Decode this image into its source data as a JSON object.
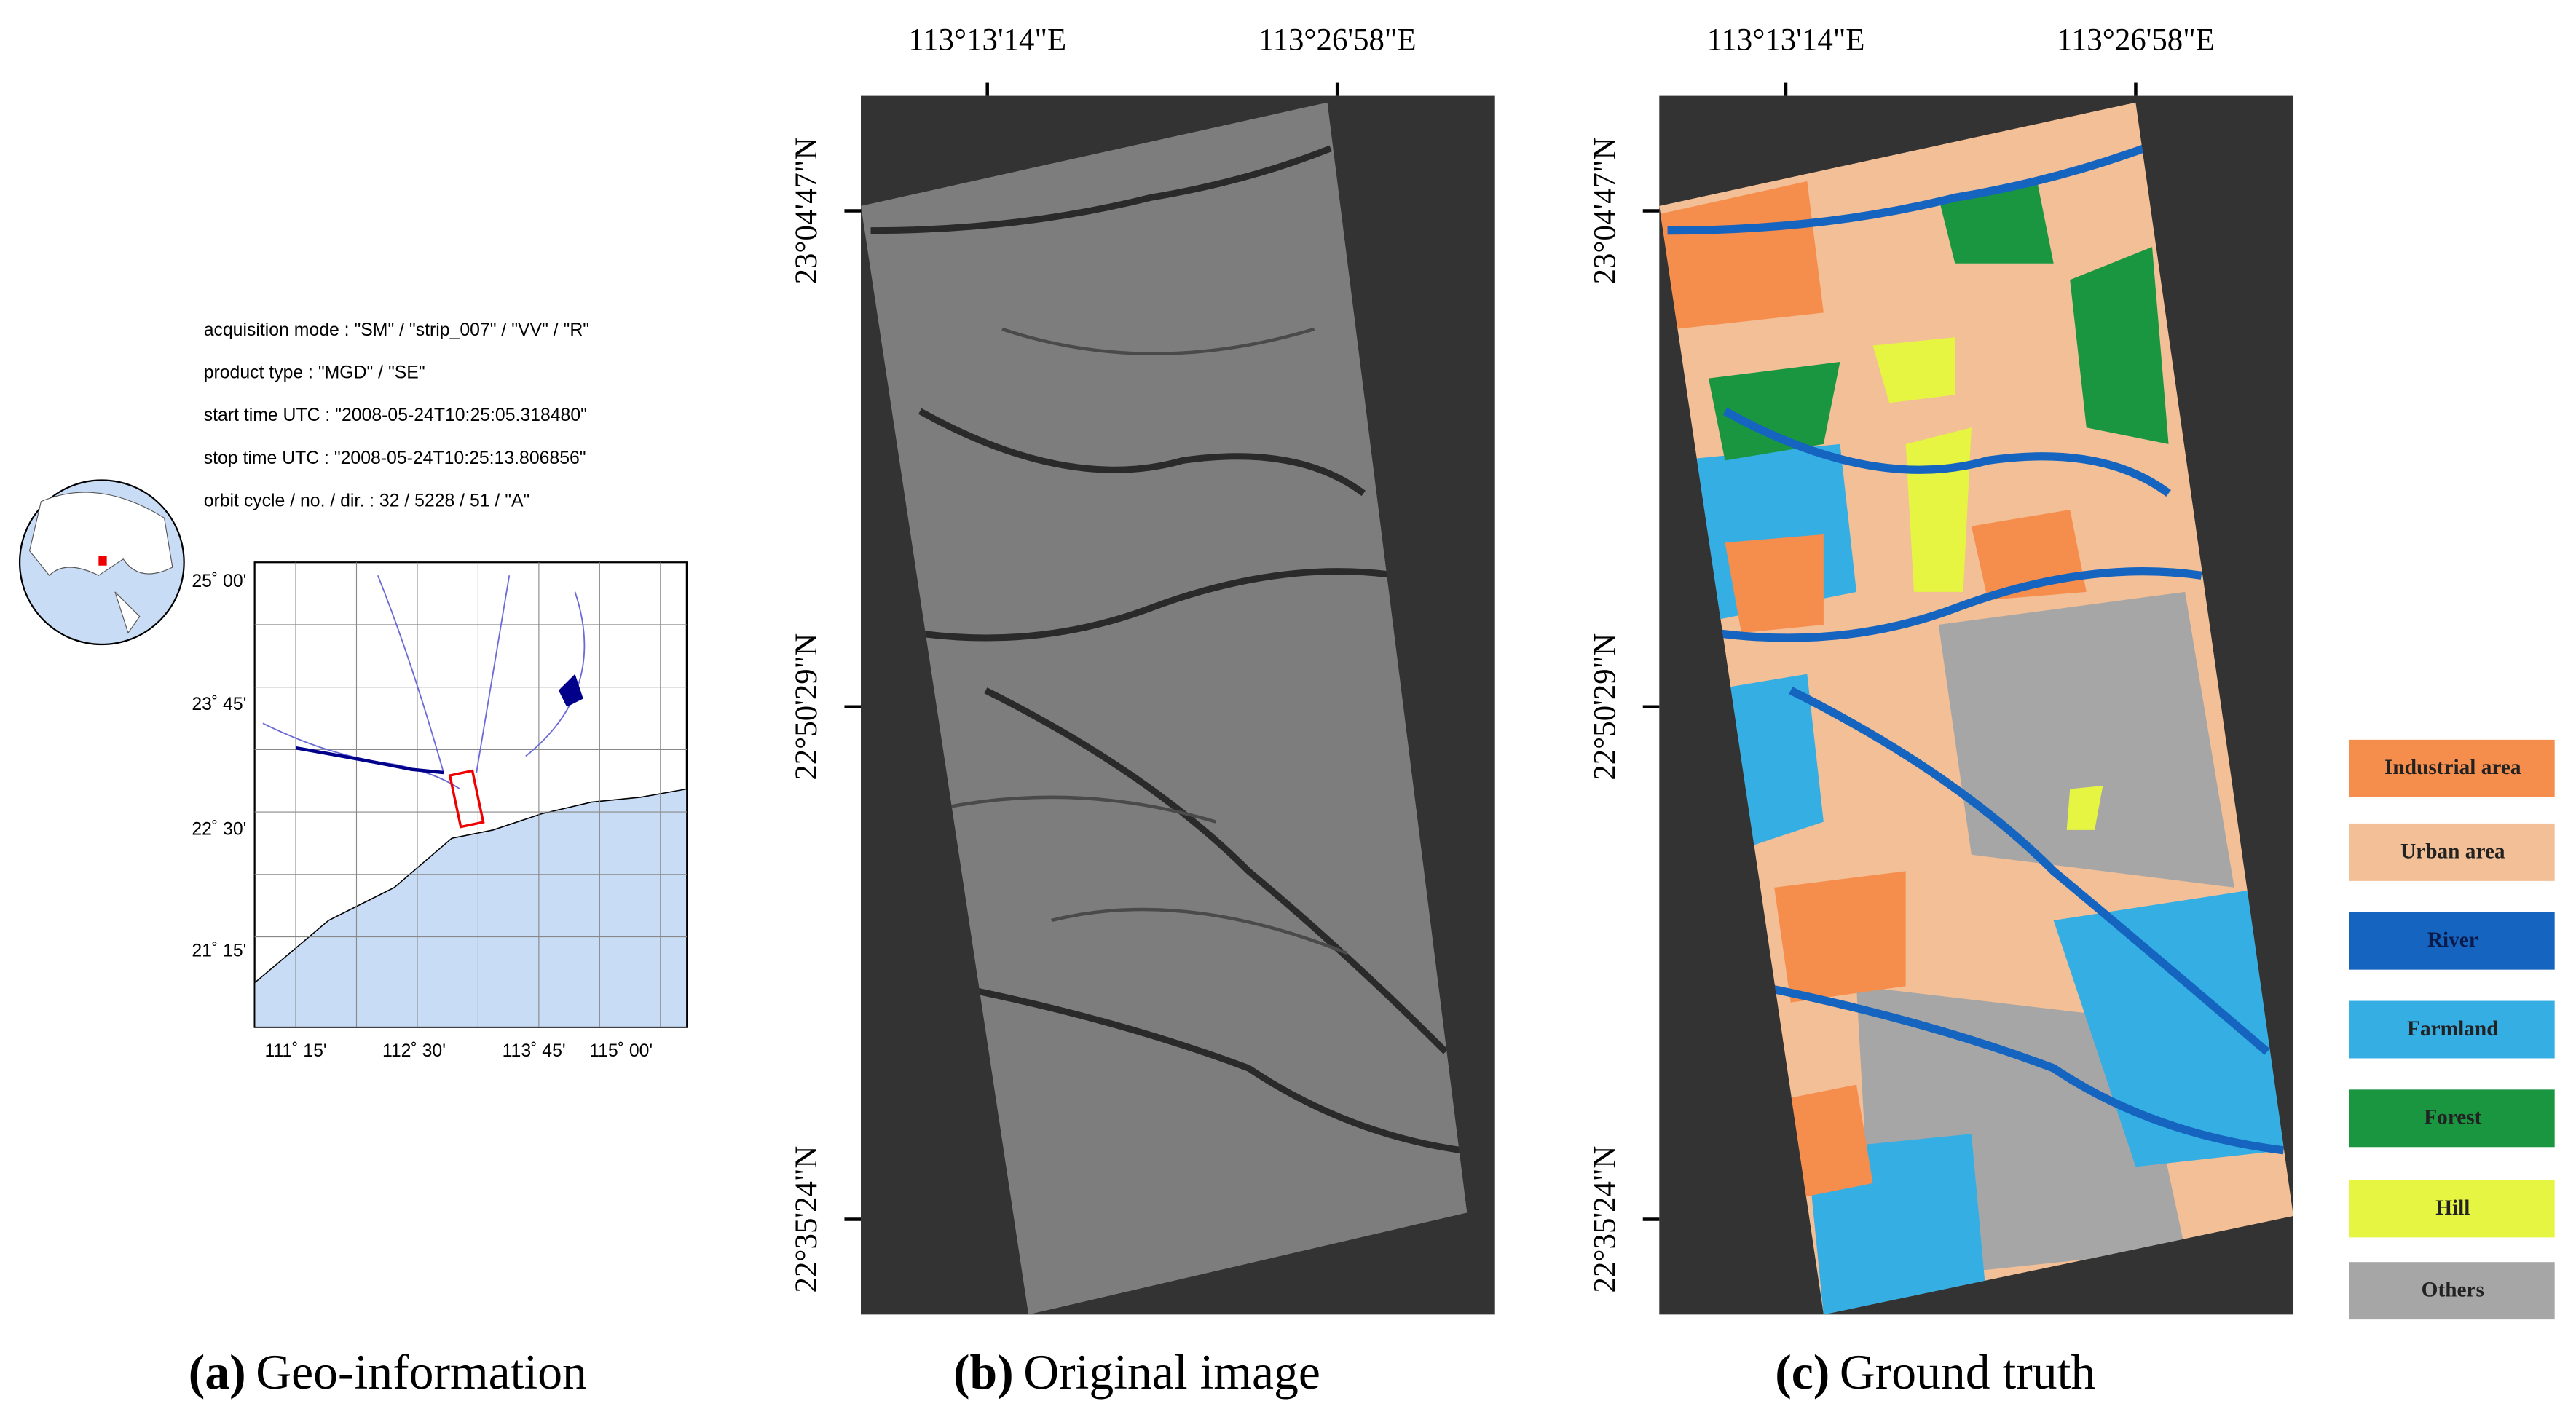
{
  "panels": [
    {
      "caption_label": "(a)",
      "caption": "Geo-information",
      "info": [
        "acquisition mode : \"SM\" / \"strip_007\" / \"VV\" / \"R\"",
        "product type     : \"MGD\" / \"SE\"",
        "start time UTC   : \"2008-05-24T10:25:05.318480\"",
        "stop time UTC    : \"2008-05-24T10:25:13.806856\"",
        "orbit cycle / no. / dir.  : 32 / 5228 / 51 / \"A\""
      ],
      "lat_labels": [
        "25˚ 00'",
        "23˚ 45'",
        "22˚ 30'",
        "21˚ 15'"
      ],
      "lon_labels": [
        "111˚ 15'",
        "112˚ 30'",
        "113˚ 45'",
        "115˚ 00'"
      ]
    },
    {
      "caption_label": "(b)",
      "caption": "Original image",
      "lon_labels": [
        "113°13'14\"E",
        "113°26'58\"E"
      ],
      "lat_labels": [
        "23°04'47\"N",
        "22°50'29\"N",
        "22°35'24\"N"
      ]
    },
    {
      "caption_label": "(c)",
      "caption": "Ground truth",
      "lon_labels": [
        "113°13'14\"E",
        "113°26'58\"E"
      ],
      "lat_labels": [
        "23°04'47\"N",
        "22°50'29\"N",
        "22°35'24\"N"
      ]
    }
  ],
  "legend": [
    {
      "name": "Industrial area",
      "color": "#f58d4d"
    },
    {
      "name": "Urban area",
      "color": "#f2bf96"
    },
    {
      "name": "River",
      "color": "#1565c0"
    },
    {
      "name": "Farmland",
      "color": "#35aee4"
    },
    {
      "name": "Forest",
      "color": "#1a9641"
    },
    {
      "name": "Hill",
      "color": "#e5f542"
    },
    {
      "name": "Others",
      "color": "#a6a6a6"
    }
  ]
}
